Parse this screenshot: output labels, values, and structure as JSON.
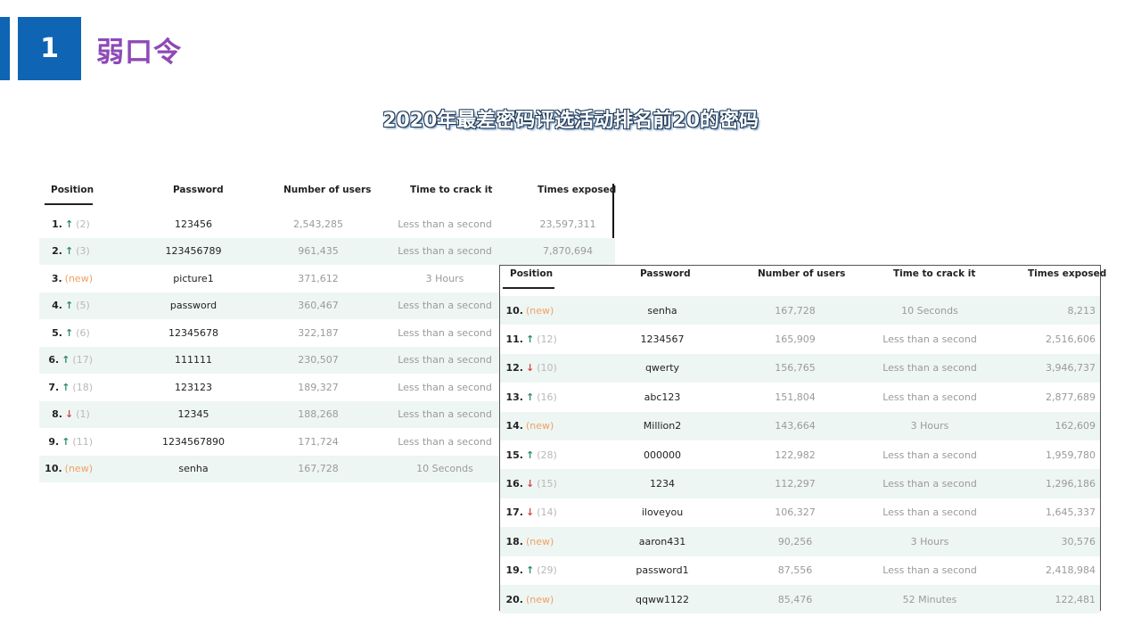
{
  "header": {
    "number": "1",
    "title": "弱口令",
    "subtitle": "2020年最差密码评选活动排名前20的密码"
  },
  "colors": {
    "accent_blue": "#0f64b4",
    "title_purple": "#8e49b7",
    "row_alt": "#eef6f4",
    "arrow_up": "#2c8a6a",
    "arrow_down": "#d04848",
    "new_tag": "#f0a060"
  },
  "table_headers": {
    "position": "Position",
    "password": "Password",
    "users": "Number of users",
    "crack": "Time to crack it",
    "exposed": "Times exposed"
  },
  "table1": [
    {
      "pos": "1.",
      "trend": "up",
      "prev": "(2)",
      "password": "123456",
      "users": "2,543,285",
      "crack": "Less than a second",
      "exposed": "23,597,311"
    },
    {
      "pos": "2.",
      "trend": "up",
      "prev": "(3)",
      "password": "123456789",
      "users": "961,435",
      "crack": "Less than a second",
      "exposed": "7,870,694"
    },
    {
      "pos": "3.",
      "trend": "new",
      "prev": "(new)",
      "password": "picture1",
      "users": "371,612",
      "crack": "3 Hours",
      "exposed": ""
    },
    {
      "pos": "4.",
      "trend": "up",
      "prev": "(5)",
      "password": "password",
      "users": "360,467",
      "crack": "Less than a second",
      "exposed": ""
    },
    {
      "pos": "5.",
      "trend": "up",
      "prev": "(6)",
      "password": "12345678",
      "users": "322,187",
      "crack": "Less than a second",
      "exposed": ""
    },
    {
      "pos": "6.",
      "trend": "up",
      "prev": "(17)",
      "password": "111111",
      "users": "230,507",
      "crack": "Less than a second",
      "exposed": ""
    },
    {
      "pos": "7.",
      "trend": "up",
      "prev": "(18)",
      "password": "123123",
      "users": "189,327",
      "crack": "Less than a second",
      "exposed": ""
    },
    {
      "pos": "8.",
      "trend": "down",
      "prev": "(1)",
      "password": "12345",
      "users": "188,268",
      "crack": "Less than a second",
      "exposed": ""
    },
    {
      "pos": "9.",
      "trend": "up",
      "prev": "(11)",
      "password": "1234567890",
      "users": "171,724",
      "crack": "Less than a second",
      "exposed": ""
    },
    {
      "pos": "10.",
      "trend": "new",
      "prev": "(new)",
      "password": "senha",
      "users": "167,728",
      "crack": "10 Seconds",
      "exposed": ""
    }
  ],
  "table2": [
    {
      "pos": "10.",
      "trend": "new",
      "prev": "(new)",
      "password": "senha",
      "users": "167,728",
      "crack": "10 Seconds",
      "exposed": "8,213"
    },
    {
      "pos": "11.",
      "trend": "up",
      "prev": "(12)",
      "password": "1234567",
      "users": "165,909",
      "crack": "Less than a second",
      "exposed": "2,516,606"
    },
    {
      "pos": "12.",
      "trend": "down",
      "prev": "(10)",
      "password": "qwerty",
      "users": "156,765",
      "crack": "Less than a second",
      "exposed": "3,946,737"
    },
    {
      "pos": "13.",
      "trend": "up",
      "prev": "(16)",
      "password": "abc123",
      "users": "151,804",
      "crack": "Less than a second",
      "exposed": "2,877,689"
    },
    {
      "pos": "14.",
      "trend": "new",
      "prev": "(new)",
      "password": "Million2",
      "users": "143,664",
      "crack": "3 Hours",
      "exposed": "162,609"
    },
    {
      "pos": "15.",
      "trend": "up",
      "prev": "(28)",
      "password": "000000",
      "users": "122,982",
      "crack": "Less than a second",
      "exposed": "1,959,780"
    },
    {
      "pos": "16.",
      "trend": "down",
      "prev": "(15)",
      "password": "1234",
      "users": "112,297",
      "crack": "Less than a second",
      "exposed": "1,296,186"
    },
    {
      "pos": "17.",
      "trend": "down",
      "prev": "(14)",
      "password": "iloveyou",
      "users": "106,327",
      "crack": "Less than a second",
      "exposed": "1,645,337"
    },
    {
      "pos": "18.",
      "trend": "new",
      "prev": "(new)",
      "password": "aaron431",
      "users": "90,256",
      "crack": "3 Hours",
      "exposed": "30,576"
    },
    {
      "pos": "19.",
      "trend": "up",
      "prev": "(29)",
      "password": "password1",
      "users": "87,556",
      "crack": "Less than a second",
      "exposed": "2,418,984"
    },
    {
      "pos": "20.",
      "trend": "new",
      "prev": "(new)",
      "password": "qqww1122",
      "users": "85,476",
      "crack": "52 Minutes",
      "exposed": "122,481"
    }
  ]
}
